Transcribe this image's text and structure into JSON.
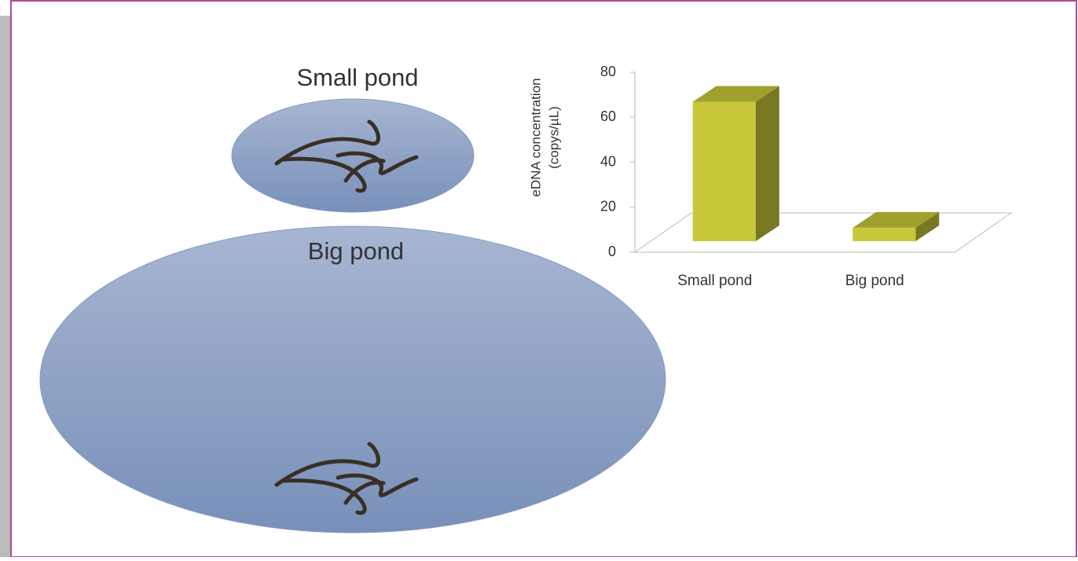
{
  "ponds": [
    {
      "label": "Small pond"
    },
    {
      "label": "Big pond"
    }
  ],
  "chart_data": {
    "type": "bar3d",
    "ylabel": [
      "eDNA concentration",
      "(copys/µL)"
    ],
    "categories": [
      "Small pond",
      "Big pond"
    ],
    "values": [
      62,
      6
    ],
    "color": "#c8c83a",
    "ylim": [
      0,
      80
    ],
    "yticks": [
      0,
      20,
      40,
      60,
      80
    ]
  }
}
